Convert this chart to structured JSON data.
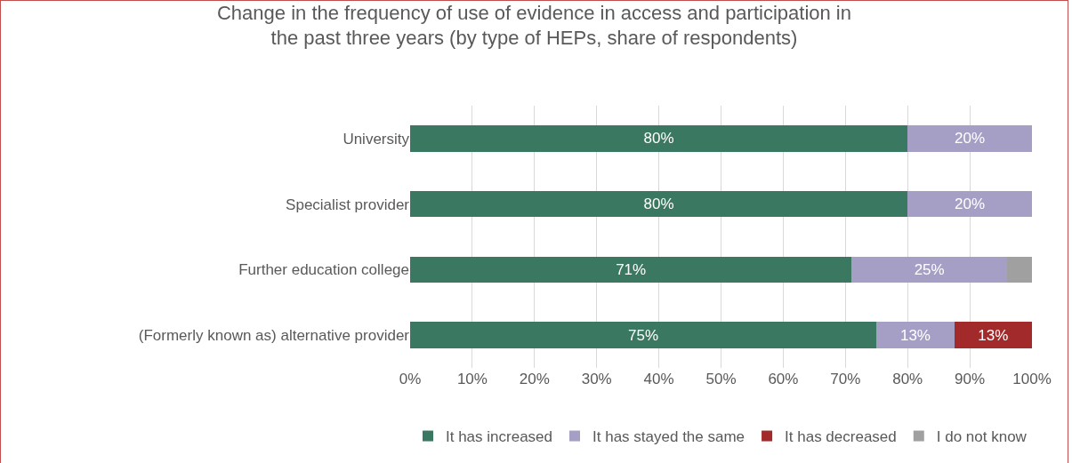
{
  "chart_data": {
    "type": "bar",
    "orientation": "horizontal",
    "stacked": true,
    "title": "Change in the frequency of use of evidence in access and participation in\nthe past three years (by type of HEPs, share of respondents)",
    "categories": [
      "University",
      "Specialist provider",
      "Further education college",
      "(Formerly known as) alternative provider"
    ],
    "series": [
      {
        "name": "It has increased",
        "color": "#3b7861",
        "values": [
          80,
          80,
          71,
          75
        ],
        "value_labels": [
          "80%",
          "80%",
          "71%",
          "75%"
        ]
      },
      {
        "name": "It has stayed the same",
        "color": "#a59fc6",
        "values": [
          20,
          20,
          25,
          12.5
        ],
        "value_labels": [
          "20%",
          "20%",
          "25%",
          "13%"
        ]
      },
      {
        "name": "It has decreased",
        "color": "#a32a2a",
        "values": [
          0,
          0,
          0,
          12.5
        ],
        "value_labels": [
          null,
          null,
          null,
          "13%"
        ]
      },
      {
        "name": "I do not know",
        "color": "#a0a0a0",
        "values": [
          0,
          0,
          4,
          0
        ],
        "value_labels": [
          null,
          null,
          null,
          null
        ]
      }
    ],
    "xlim": [
      0,
      100
    ],
    "xticks": [
      {
        "value": 0,
        "label": "0%"
      },
      {
        "value": 10,
        "label": "10%"
      },
      {
        "value": 20,
        "label": "20%"
      },
      {
        "value": 30,
        "label": "30%"
      },
      {
        "value": 40,
        "label": "40%"
      },
      {
        "value": 50,
        "label": "50%"
      },
      {
        "value": 60,
        "label": "60%"
      },
      {
        "value": 70,
        "label": "70%"
      },
      {
        "value": 80,
        "label": "80%"
      },
      {
        "value": 90,
        "label": "90%"
      },
      {
        "value": 100,
        "label": "100%"
      }
    ],
    "grid": "x",
    "legend": "bottom"
  }
}
